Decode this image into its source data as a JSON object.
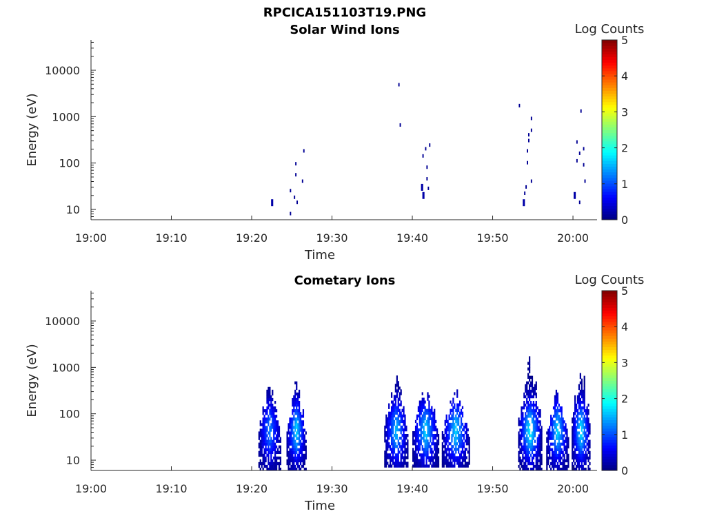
{
  "figure_title": "RPCICA151103T19.PNG",
  "chart_data": [
    {
      "type": "heatmap",
      "title": "Solar Wind Ions",
      "xlabel": "Time",
      "ylabel": "Energy (eV)",
      "yscale": "log",
      "ylim": [
        6,
        45000
      ],
      "xlim_minutes_after_19_00": [
        0,
        63
      ],
      "x_ticks": [
        "19:00",
        "19:10",
        "19:20",
        "19:30",
        "19:40",
        "19:50",
        "20:00"
      ],
      "y_ticks": [
        "10",
        "100",
        "1000",
        "10000"
      ],
      "colorbar": {
        "label": "Log Counts",
        "range": [
          0,
          5
        ],
        "ticks": [
          "0",
          "1",
          "2",
          "3",
          "4",
          "5"
        ]
      },
      "grid": false,
      "cells": [
        {
          "t": "19:22:30",
          "e": 14,
          "z": 0.2
        },
        {
          "t": "19:24:50",
          "e": 8,
          "z": 0.1
        },
        {
          "t": "19:24:50",
          "e": 25,
          "z": 0.1
        },
        {
          "t": "19:25:20",
          "e": 18,
          "z": 0.1
        },
        {
          "t": "19:25:40",
          "e": 14,
          "z": 0.1
        },
        {
          "t": "19:25:30",
          "e": 55,
          "z": 0.1
        },
        {
          "t": "19:25:30",
          "e": 95,
          "z": 0.1
        },
        {
          "t": "19:26:20",
          "e": 40,
          "z": 0.1
        },
        {
          "t": "19:26:30",
          "e": 180,
          "z": 0.1
        },
        {
          "t": "19:38:20",
          "e": 4800,
          "z": 0.1
        },
        {
          "t": "19:38:30",
          "e": 650,
          "z": 0.1
        },
        {
          "t": "19:41:10",
          "e": 30,
          "z": 0.2
        },
        {
          "t": "19:41:20",
          "e": 20,
          "z": 0.2
        },
        {
          "t": "19:41:20",
          "e": 140,
          "z": 0.1
        },
        {
          "t": "19:41:40",
          "e": 200,
          "z": 0.1
        },
        {
          "t": "19:41:50",
          "e": 80,
          "z": 0.1
        },
        {
          "t": "19:41:50",
          "e": 45,
          "z": 0.1
        },
        {
          "t": "19:42:10",
          "e": 240,
          "z": 0.1
        },
        {
          "t": "19:42:00",
          "e": 28,
          "z": 0.1
        },
        {
          "t": "19:53:20",
          "e": 1700,
          "z": 0.1
        },
        {
          "t": "19:53:50",
          "e": 14,
          "z": 0.2
        },
        {
          "t": "19:54:00",
          "e": 22,
          "z": 0.1
        },
        {
          "t": "19:54:10",
          "e": 30,
          "z": 0.1
        },
        {
          "t": "19:54:20",
          "e": 100,
          "z": 0.1
        },
        {
          "t": "19:54:20",
          "e": 180,
          "z": 0.1
        },
        {
          "t": "19:54:30",
          "e": 300,
          "z": 0.1
        },
        {
          "t": "19:54:30",
          "e": 400,
          "z": 0.1
        },
        {
          "t": "19:54:50",
          "e": 900,
          "z": 0.1
        },
        {
          "t": "19:54:50",
          "e": 500,
          "z": 0.1
        },
        {
          "t": "19:54:50",
          "e": 40,
          "z": 0.1
        },
        {
          "t": "20:00:10",
          "e": 20,
          "z": 0.2
        },
        {
          "t": "20:00:30",
          "e": 280,
          "z": 0.1
        },
        {
          "t": "20:00:30",
          "e": 110,
          "z": 0.1
        },
        {
          "t": "20:00:50",
          "e": 14,
          "z": 0.1
        },
        {
          "t": "20:00:50",
          "e": 160,
          "z": 0.1
        },
        {
          "t": "20:01:00",
          "e": 1300,
          "z": 0.1
        },
        {
          "t": "20:01:20",
          "e": 200,
          "z": 0.1
        },
        {
          "t": "20:01:20",
          "e": 90,
          "z": 0.1
        },
        {
          "t": "20:01:30",
          "e": 40,
          "z": 0.1
        }
      ]
    },
    {
      "type": "heatmap",
      "title": "Cometary Ions",
      "xlabel": "Time",
      "ylabel": "Energy (eV)",
      "yscale": "log",
      "ylim": [
        6,
        45000
      ],
      "xlim_minutes_after_19_00": [
        0,
        63
      ],
      "x_ticks": [
        "19:00",
        "19:10",
        "19:20",
        "19:30",
        "19:40",
        "19:50",
        "20:00"
      ],
      "y_ticks": [
        "10",
        "100",
        "1000",
        "10000"
      ],
      "colorbar": {
        "label": "Log Counts",
        "range": [
          0,
          5
        ],
        "ticks": [
          "0",
          "1",
          "2",
          "3",
          "4",
          "5"
        ]
      },
      "grid": false,
      "bursts": [
        {
          "t_start": "19:20:50",
          "t_end": "19:23:40",
          "e_low": 6,
          "e_high": 600,
          "peak_e": 40,
          "peak_z": 1.2
        },
        {
          "t_start": "19:24:20",
          "t_end": "19:26:50",
          "e_low": 6,
          "e_high": 600,
          "peak_e": 40,
          "peak_z": 1.6
        },
        {
          "t_start": "19:36:30",
          "t_end": "19:39:30",
          "e_low": 7,
          "e_high": 800,
          "peak_e": 40,
          "peak_z": 1.5
        },
        {
          "t_start": "19:40:00",
          "t_end": "19:43:20",
          "e_low": 7,
          "e_high": 550,
          "peak_e": 40,
          "peak_z": 1.6
        },
        {
          "t_start": "19:43:40",
          "t_end": "19:47:10",
          "e_low": 7,
          "e_high": 400,
          "peak_e": 40,
          "peak_z": 1.6
        },
        {
          "t_start": "19:53:10",
          "t_end": "19:56:10",
          "e_low": 6,
          "e_high": 2200,
          "peak_e": 40,
          "peak_z": 1.8
        },
        {
          "t_start": "19:56:40",
          "t_end": "19:59:30",
          "e_low": 6,
          "e_high": 400,
          "peak_e": 40,
          "peak_z": 1.6
        },
        {
          "t_start": "19:59:50",
          "t_end": "20:02:10",
          "e_low": 6,
          "e_high": 1800,
          "peak_e": 40,
          "peak_z": 1.7
        }
      ]
    }
  ]
}
